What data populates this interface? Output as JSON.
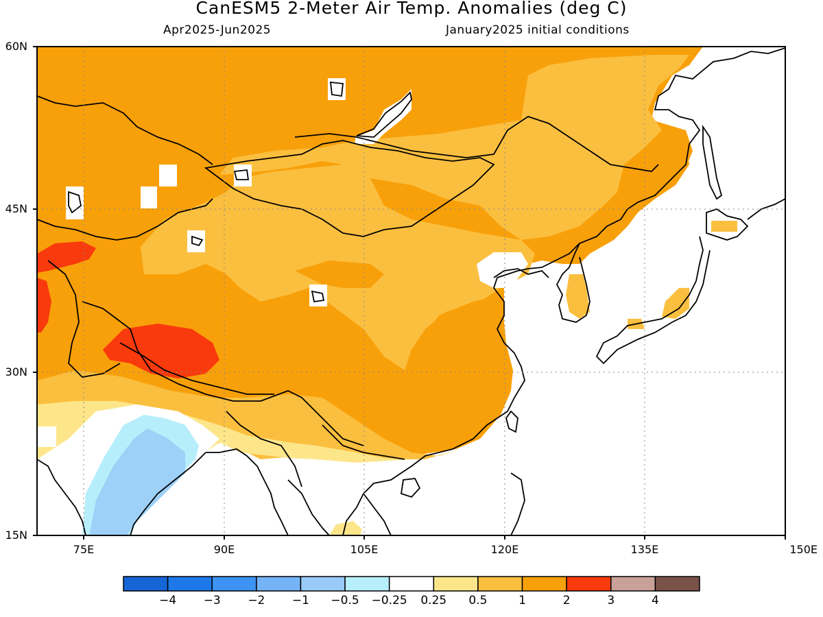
{
  "header": {
    "title": "CanESM5 2-Meter Air Temp. Anomalies (deg C)",
    "period": "Apr2025-Jun2025",
    "init": "January2025 initial conditions"
  },
  "map": {
    "lat_labels": [
      "60N",
      "45N",
      "30N",
      "15N"
    ],
    "lon_labels": [
      "75E",
      "90E",
      "105E",
      "120E",
      "135E",
      "150E"
    ],
    "extent": {
      "lon": [
        70,
        150
      ],
      "lat": [
        15,
        60
      ]
    },
    "colors": {
      "cat_0.25_0.5": "#fde68a",
      "cat_0.5_1": "#fbbf3f",
      "cat_1_2": "#f8a00a",
      "cat_2_3": "#f93a0c",
      "cat_-0.5_-0.25": "#b6eefb",
      "cat_-1_-0.5": "#9dd1f8",
      "land_outline": "#000000"
    }
  },
  "colorbar": {
    "colors": [
      "#1565d6",
      "#1f78ea",
      "#3c93f3",
      "#74b3f6",
      "#99cbf8",
      "#b6eefb",
      "#ffffff",
      "#fde68a",
      "#fbbf3f",
      "#f8a00a",
      "#f93a0c",
      "#c8a199",
      "#7a5248"
    ],
    "labels": [
      "−4",
      "−3",
      "−2",
      "−1",
      "−0.5",
      "−0.25",
      "0.25",
      "0.5",
      "1",
      "2",
      "3",
      "4"
    ]
  }
}
